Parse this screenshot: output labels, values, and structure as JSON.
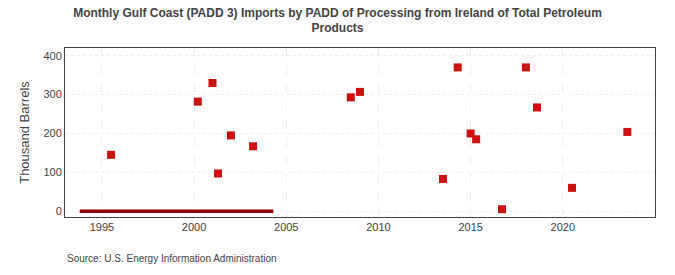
{
  "chart_data": {
    "type": "scatter",
    "title": "Monthly Gulf Coast (PADD 3) Imports by PADD of Processing from Ireland of Total Petroleum\nProducts",
    "ylabel": "Thousand Barrels",
    "annotations": [
      "Source: U.S. Energy Information Administration"
    ],
    "xlim": [
      1993,
      2025
    ],
    "ylim": [
      -15,
      420
    ],
    "xticks": [
      1995,
      2000,
      2005,
      2010,
      2015,
      2020
    ],
    "yticks": [
      0,
      100,
      200,
      300,
      400
    ],
    "grid": true,
    "series": [
      {
        "type": "scatter",
        "color": "#cc1111",
        "marker": "square",
        "x": [
          1995.5,
          2000.2,
          2001.0,
          2001.3,
          2002.0,
          2003.2,
          2008.5,
          2009.0,
          2013.5,
          2014.3,
          2015.0,
          2015.3,
          2016.7,
          2018.0,
          2018.6,
          2020.5,
          2023.5
        ],
        "values": [
          145,
          282,
          330,
          97,
          195,
          167,
          293,
          307,
          83,
          370,
          200,
          185,
          5,
          370,
          267,
          60,
          204
        ]
      },
      {
        "type": "line",
        "color": "#8b0000",
        "line_style": "solid",
        "x": [
          1993.8,
          2004.3
        ],
        "values": [
          0,
          0
        ]
      }
    ]
  }
}
